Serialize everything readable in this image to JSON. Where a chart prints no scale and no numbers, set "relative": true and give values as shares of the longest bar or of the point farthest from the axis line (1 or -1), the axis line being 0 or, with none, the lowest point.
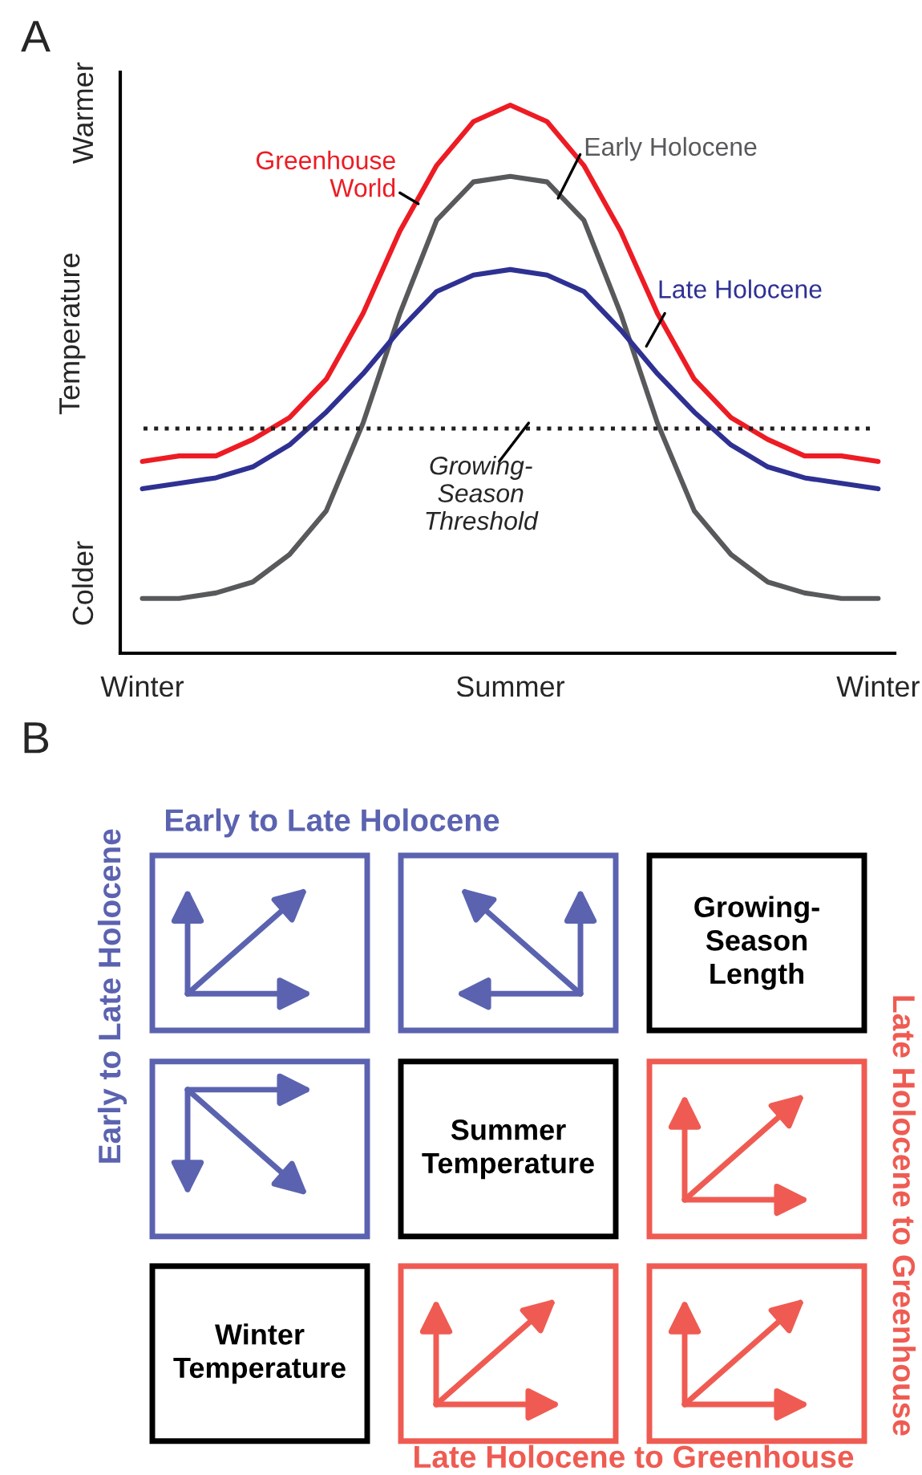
{
  "chart_data": [
    {
      "type": "line",
      "title": "A",
      "ylabel": "Temperature",
      "relative": true,
      "categories": [
        "Winter",
        null,
        null,
        null,
        null,
        null,
        null,
        null,
        null,
        null,
        "Summer",
        null,
        null,
        null,
        null,
        null,
        null,
        null,
        null,
        null,
        "Winter"
      ],
      "series": [
        {
          "name": "Greenhouse\nWorld",
          "color": "#ed1c24",
          "values": [
            0.35,
            0.36,
            0.36,
            0.39,
            0.43,
            0.5,
            0.62,
            0.77,
            0.89,
            0.97,
            1,
            0.97,
            0.89,
            0.77,
            0.62,
            0.5,
            0.43,
            0.39,
            0.36,
            0.36,
            0.35
          ]
        },
        {
          "name": "Early Holocene",
          "color": "#58595b",
          "values": [
            0.1,
            0.1,
            0.11,
            0.13,
            0.18,
            0.26,
            0.42,
            0.62,
            0.79,
            0.86,
            0.87,
            0.86,
            0.79,
            0.62,
            0.42,
            0.26,
            0.18,
            0.13,
            0.11,
            0.1,
            0.1
          ]
        },
        {
          "name": "Late Holocene",
          "color": "#2e3192",
          "values": [
            0.3,
            0.31,
            0.32,
            0.34,
            0.38,
            0.44,
            0.51,
            0.59,
            0.66,
            0.69,
            0.7,
            0.69,
            0.66,
            0.59,
            0.51,
            0.44,
            0.38,
            0.34,
            0.32,
            0.31,
            0.3
          ]
        }
      ],
      "ref_lines": [
        {
          "axis": "y",
          "value": 0.41,
          "label": "Growing-\nSeason\nThreshold",
          "line_style": "dotted",
          "color": "#231f20"
        }
      ],
      "annotations": [
        "Warmer",
        "Colder"
      ],
      "line_style": "solid",
      "grid": false
    },
    {
      "type": "other",
      "title": "B",
      "annotations": [
        "Early to Late Holocene",
        "Early to Late Holocene",
        "Late Holocene to Greenhouse",
        "Late Holocene to Greenhouse",
        "Growing-\nSeason\nLength",
        "Summer\nTemperature",
        "Winter\nTemperature"
      ]
    }
  ]
}
